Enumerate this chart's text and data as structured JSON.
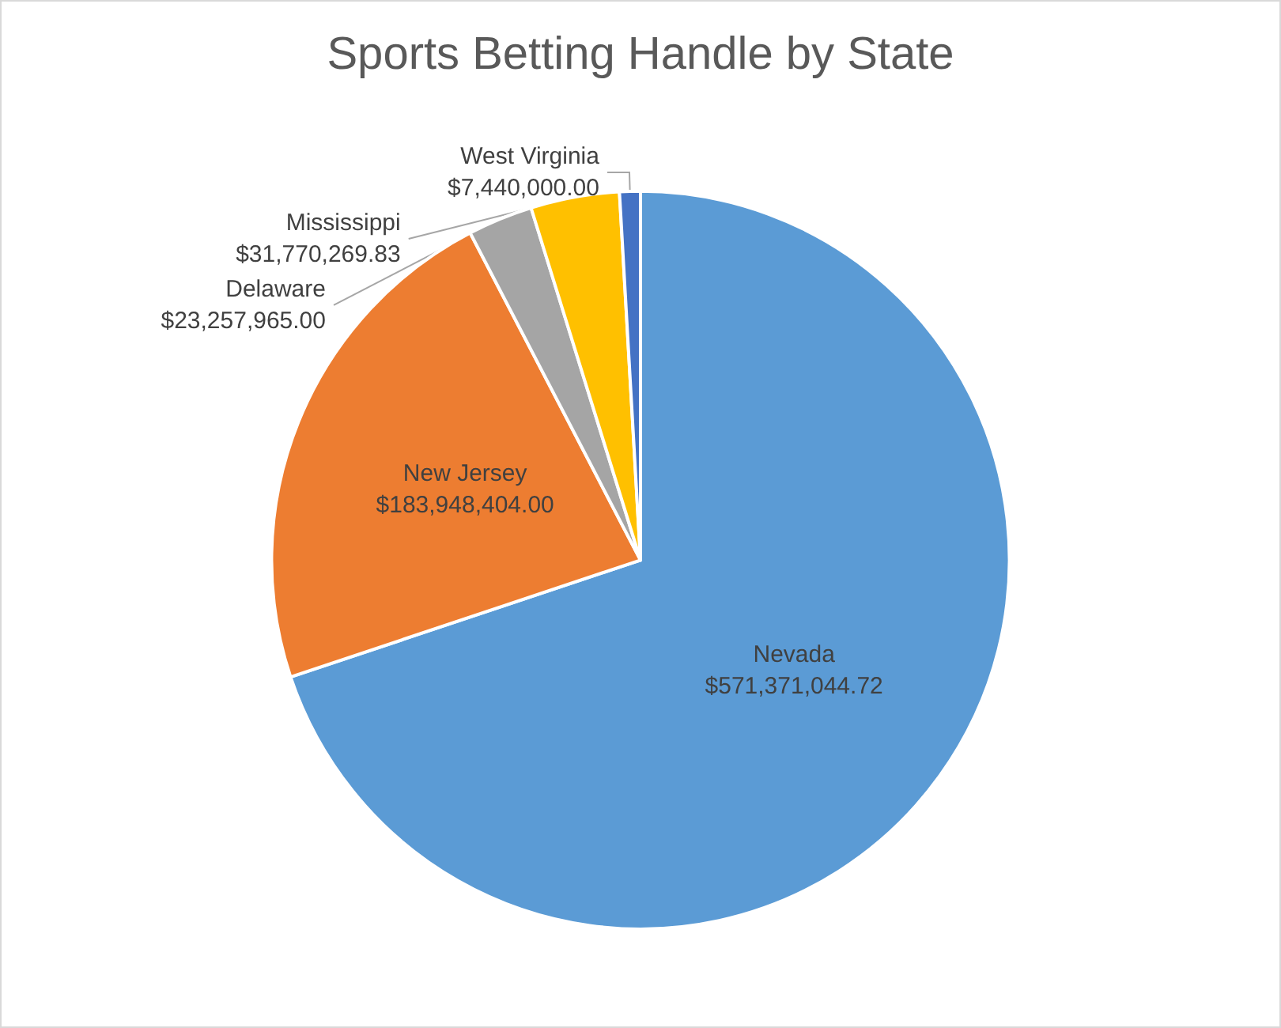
{
  "chart_data": {
    "type": "pie",
    "title": "Sports Betting Handle by State",
    "categories": [
      "Nevada",
      "New Jersey",
      "Delaware",
      "Mississippi",
      "West Virginia"
    ],
    "values": [
      571371044.72,
      183948404.0,
      23257965.0,
      31770269.83,
      7440000.0
    ],
    "value_labels": [
      "$571,371,044.72",
      "$183,948,404.00",
      "$23,257,965.00",
      "$31,770,269.83",
      "$7,440,000.00"
    ],
    "colors": [
      "#5b9bd5",
      "#ed7d31",
      "#a5a5a5",
      "#ffc000",
      "#4472c4"
    ],
    "legend": false
  }
}
